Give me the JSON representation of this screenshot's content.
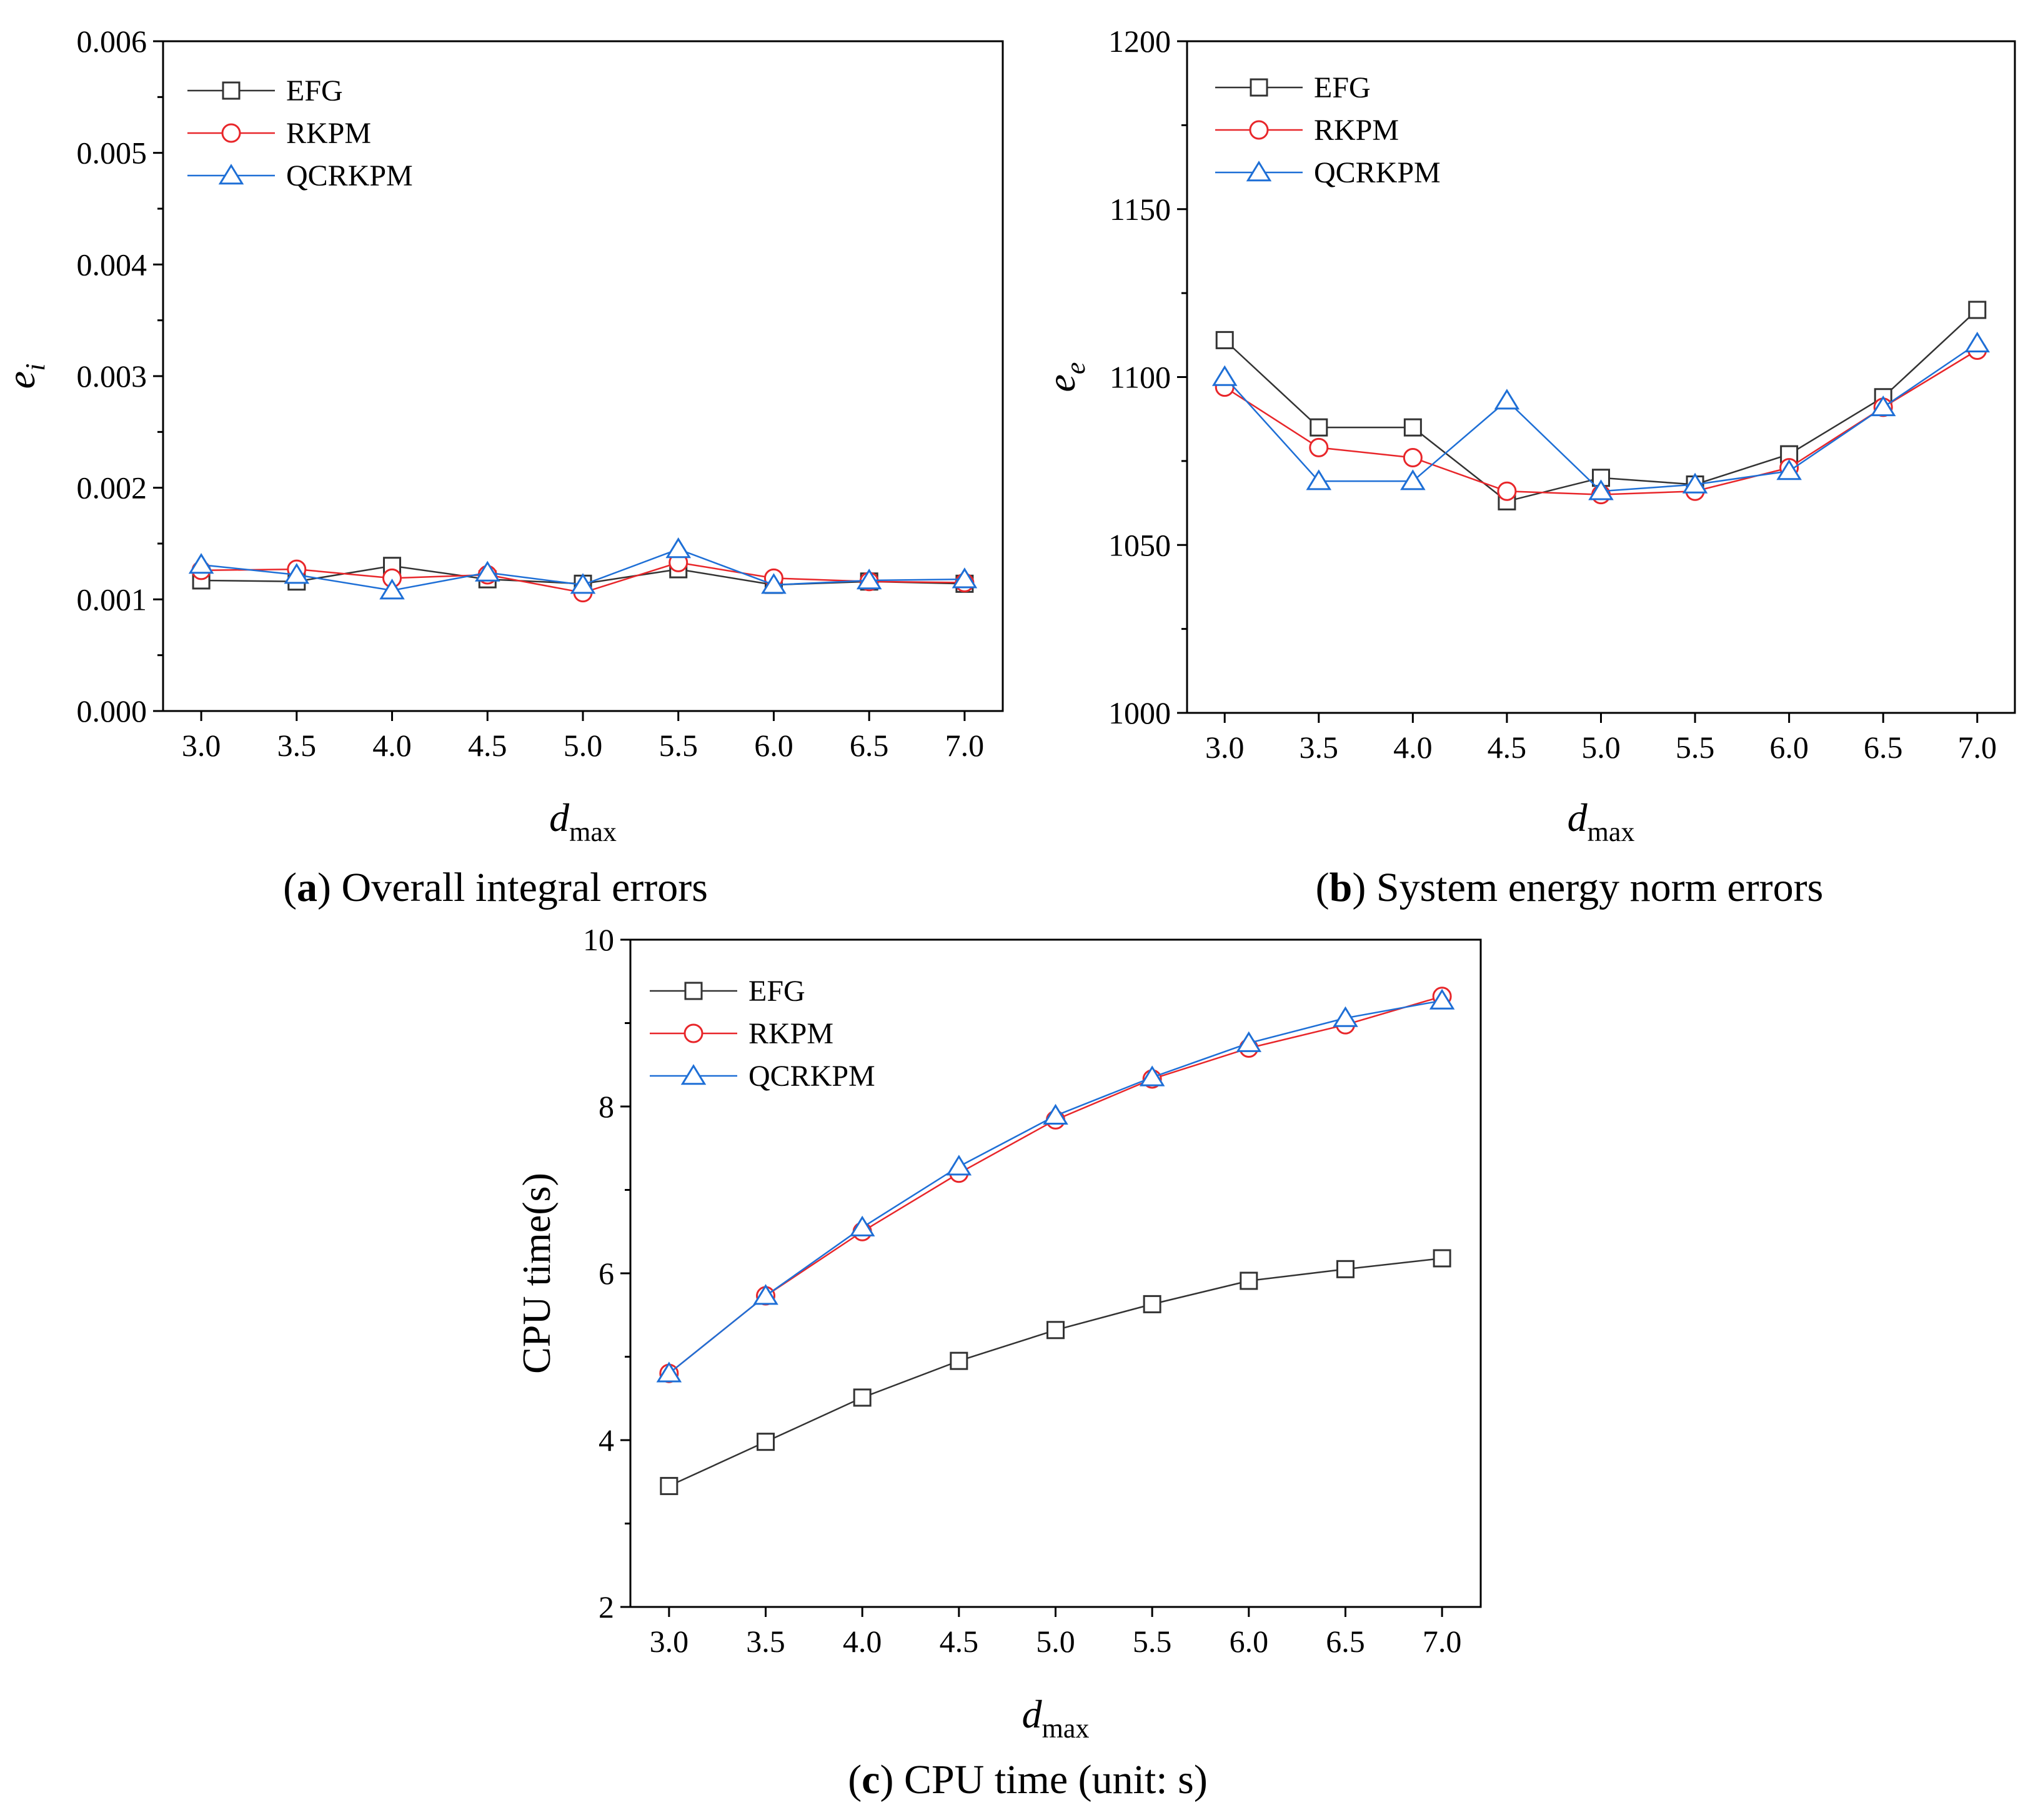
{
  "chart_data": [
    {
      "type": "line",
      "panel": "a",
      "caption_letter": "a",
      "caption_rest": " Overall integral errors",
      "ylabel_main": "e",
      "ylabel_sub": "i",
      "xlabel_main": "d",
      "xlabel_sub": "max",
      "x": [
        3.0,
        3.5,
        4.0,
        4.5,
        5.0,
        5.5,
        6.0,
        6.5,
        7.0
      ],
      "xticks": [
        "3.0",
        "3.5",
        "4.0",
        "4.5",
        "5.0",
        "5.5",
        "6.0",
        "6.5",
        "7.0"
      ],
      "xlim": [
        2.8,
        7.2
      ],
      "ylim": [
        0.0,
        0.006
      ],
      "yticks": [
        0.0,
        0.001,
        0.002,
        0.003,
        0.004,
        0.005,
        0.006
      ],
      "ytick_labels": [
        "0.000",
        "0.001",
        "0.002",
        "0.003",
        "0.004",
        "0.005",
        "0.006"
      ],
      "legend_position": "top-left",
      "series": [
        {
          "name": "EFG",
          "marker": "square",
          "color": "#333333",
          "values": [
            0.00117,
            0.00116,
            0.0013,
            0.00118,
            0.00114,
            0.00127,
            0.00113,
            0.00116,
            0.00114
          ]
        },
        {
          "name": "RKPM",
          "marker": "circle",
          "color": "#e8262a",
          "values": [
            0.00126,
            0.00127,
            0.00119,
            0.00122,
            0.00106,
            0.00133,
            0.00119,
            0.00116,
            0.00115
          ]
        },
        {
          "name": "QCRKPM",
          "marker": "triangle",
          "color": "#1e6fd6",
          "values": [
            0.00131,
            0.00122,
            0.00108,
            0.00124,
            0.00113,
            0.00145,
            0.00113,
            0.00117,
            0.00118
          ]
        }
      ]
    },
    {
      "type": "line",
      "panel": "b",
      "caption_letter": "b",
      "caption_rest": " System energy norm errors",
      "ylabel_main": "e",
      "ylabel_sub": "e",
      "xlabel_main": "d",
      "xlabel_sub": "max",
      "x": [
        3.0,
        3.5,
        4.0,
        4.5,
        5.0,
        5.5,
        6.0,
        6.5,
        7.0
      ],
      "xticks": [
        "3.0",
        "3.5",
        "4.0",
        "4.5",
        "5.0",
        "5.5",
        "6.0",
        "6.5",
        "7.0"
      ],
      "xlim": [
        2.8,
        7.2
      ],
      "ylim": [
        1000,
        1200
      ],
      "yticks": [
        1000,
        1050,
        1100,
        1150,
        1200
      ],
      "ytick_labels": [
        "1000",
        "1050",
        "1100",
        "1150",
        "1200"
      ],
      "legend_position": "top-left",
      "series": [
        {
          "name": "EFG",
          "marker": "square",
          "color": "#333333",
          "values": [
            1111,
            1085,
            1085,
            1063,
            1070,
            1068,
            1077,
            1094,
            1120
          ]
        },
        {
          "name": "RKPM",
          "marker": "circle",
          "color": "#e8262a",
          "values": [
            1097,
            1079,
            1076,
            1066,
            1065,
            1066,
            1073,
            1091,
            1108
          ]
        },
        {
          "name": "QCRKPM",
          "marker": "triangle",
          "color": "#1e6fd6",
          "values": [
            1100,
            1069,
            1069,
            1093,
            1066,
            1068,
            1072,
            1091,
            1110
          ]
        }
      ]
    },
    {
      "type": "line",
      "panel": "c",
      "caption_letter": "c",
      "caption_rest": " CPU time (unit: s)",
      "ylabel_main": "CPU time(s)",
      "ylabel_sub": "",
      "xlabel_main": "d",
      "xlabel_sub": "max",
      "x": [
        3.0,
        3.5,
        4.0,
        4.5,
        5.0,
        5.5,
        6.0,
        6.5,
        7.0
      ],
      "xticks": [
        "3.0",
        "3.5",
        "4.0",
        "4.5",
        "5.0",
        "5.5",
        "6.0",
        "6.5",
        "7.0"
      ],
      "xlim": [
        2.8,
        7.2
      ],
      "ylim": [
        2,
        10
      ],
      "yticks": [
        2,
        4,
        6,
        8,
        10
      ],
      "ytick_labels": [
        "2",
        "4",
        "6",
        "8",
        "10"
      ],
      "legend_position": "top-left",
      "series": [
        {
          "name": "EFG",
          "marker": "square",
          "color": "#333333",
          "values": [
            3.45,
            3.98,
            4.51,
            4.95,
            5.32,
            5.63,
            5.91,
            6.05,
            6.18
          ]
        },
        {
          "name": "RKPM",
          "marker": "circle",
          "color": "#e8262a",
          "values": [
            4.8,
            5.73,
            6.5,
            7.2,
            7.84,
            8.33,
            8.7,
            8.98,
            9.32
          ]
        },
        {
          "name": "QCRKPM",
          "marker": "triangle",
          "color": "#1e6fd6",
          "values": [
            4.8,
            5.73,
            6.55,
            7.28,
            7.89,
            8.35,
            8.76,
            9.06,
            9.27
          ]
        }
      ]
    }
  ]
}
